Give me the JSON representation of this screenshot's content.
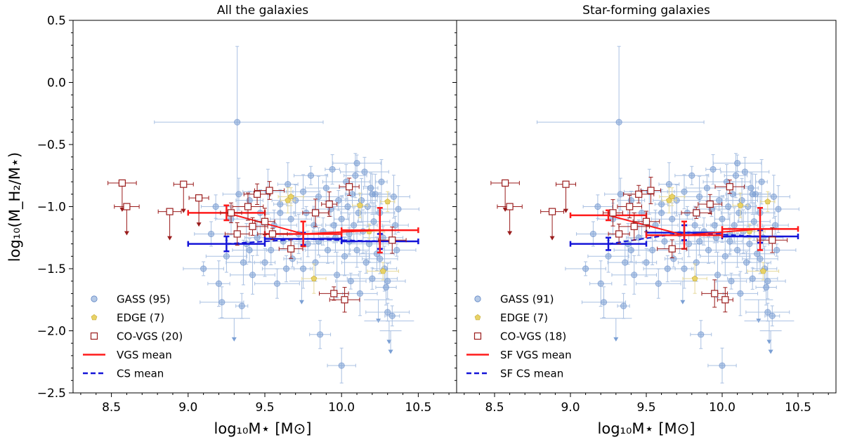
{
  "chart_data": {
    "type": "scatter",
    "ylabel": "log₁₀(M_H₂/M⋆)",
    "ylim": [
      -2.5,
      0.5
    ],
    "xlim": [
      8.25,
      10.75
    ],
    "yticks": [
      0.5,
      0.0,
      -0.5,
      -1.0,
      -1.5,
      -2.0,
      -2.5
    ],
    "ytick_labels": [
      "0.5",
      "0.0",
      "−0.5",
      "−1.0",
      "−1.5",
      "−2.0",
      "−2.5"
    ],
    "xticks": [
      8.5,
      9.0,
      9.5,
      10.0,
      10.5
    ],
    "xtick_labels": [
      "8.5",
      "9.0",
      "9.5",
      "10.0",
      "10.5"
    ],
    "colors": {
      "gass": "#7a9fd4",
      "gass_err": "#a9c0e2",
      "edge": "#e8d266",
      "edge_err": "#e6d99a",
      "covgs": "#9a1c1c",
      "vgs_mean": "#ff1a1a",
      "cs_mean": "#1414d8"
    },
    "panels": [
      {
        "title": "All the galaxies",
        "xlabel": "log₁₀M⋆ [M⊙]",
        "legend": [
          "GASS (95)",
          "EDGE (7)",
          "CO-VGS (20)",
          "VGS mean",
          "CS mean"
        ],
        "vgs_mean": {
          "x": [
            9.25,
            9.75,
            10.25
          ],
          "y": [
            -1.05,
            -1.22,
            -1.19
          ],
          "xerr": [
            0.25,
            0.25,
            0.25
          ],
          "yerr": [
            0.06,
            0.1,
            0.18
          ]
        },
        "cs_mean": {
          "x": [
            9.25,
            9.75,
            10.25
          ],
          "y": [
            -1.3,
            -1.26,
            -1.28
          ],
          "xerr": [
            0.25,
            0.25,
            0.25
          ],
          "yerr": [
            0.06,
            0.05,
            0.06
          ]
        },
        "covgs": [
          {
            "x": 8.57,
            "y": -0.81,
            "upper": true
          },
          {
            "x": 8.6,
            "y": -1.0,
            "upper": true
          },
          {
            "x": 8.88,
            "y": -1.04,
            "upper": true
          },
          {
            "x": 8.97,
            "y": -0.82,
            "upper": true
          },
          {
            "x": 9.07,
            "y": -0.93,
            "upper": true
          },
          {
            "x": 9.28,
            "y": -1.05,
            "upper": false
          },
          {
            "x": 9.32,
            "y": -1.22,
            "upper": false
          },
          {
            "x": 9.39,
            "y": -1.0,
            "upper": false
          },
          {
            "x": 9.42,
            "y": -1.16,
            "upper": false
          },
          {
            "x": 9.45,
            "y": -0.9,
            "upper": false
          },
          {
            "x": 9.5,
            "y": -1.12,
            "upper": false
          },
          {
            "x": 9.53,
            "y": -0.87,
            "upper": false
          },
          {
            "x": 9.55,
            "y": -1.22,
            "upper": false
          },
          {
            "x": 9.67,
            "y": -1.34,
            "upper": false
          },
          {
            "x": 9.83,
            "y": -1.05,
            "upper": false
          },
          {
            "x": 9.92,
            "y": -0.98,
            "upper": false
          },
          {
            "x": 9.95,
            "y": -1.7,
            "upper": false
          },
          {
            "x": 10.02,
            "y": -1.75,
            "upper": false
          },
          {
            "x": 10.05,
            "y": -0.84,
            "upper": false
          },
          {
            "x": 10.33,
            "y": -1.27,
            "upper": false
          }
        ],
        "edge": [
          {
            "x": 9.65,
            "y": -0.95
          },
          {
            "x": 9.67,
            "y": -0.92
          },
          {
            "x": 9.82,
            "y": -1.58
          },
          {
            "x": 10.12,
            "y": -0.99
          },
          {
            "x": 10.18,
            "y": -1.2
          },
          {
            "x": 10.27,
            "y": -1.52
          },
          {
            "x": 10.3,
            "y": -0.96
          }
        ]
      },
      {
        "title": "Star-forming galaxies",
        "xlabel": "log₁₀M⋆ [M⊙]",
        "legend": [
          "GASS (91)",
          "EDGE (7)",
          "CO-VGS (18)",
          "SF VGS mean",
          "SF CS mean"
        ],
        "vgs_mean": {
          "x": [
            9.25,
            9.75,
            10.25
          ],
          "y": [
            -1.07,
            -1.23,
            -1.18
          ],
          "xerr": [
            0.25,
            0.25,
            0.25
          ],
          "yerr": [
            0.04,
            0.11,
            0.17
          ]
        },
        "cs_mean": {
          "x": [
            9.25,
            9.75,
            10.25
          ],
          "y": [
            -1.3,
            -1.21,
            -1.24
          ],
          "xerr": [
            0.25,
            0.25,
            0.25
          ],
          "yerr": [
            0.05,
            0.06,
            0.05
          ]
        },
        "covgs": [
          {
            "x": 8.57,
            "y": -0.81,
            "upper": true
          },
          {
            "x": 8.6,
            "y": -1.0,
            "upper": true
          },
          {
            "x": 8.88,
            "y": -1.04,
            "upper": true
          },
          {
            "x": 8.97,
            "y": -0.82,
            "upper": true
          },
          {
            "x": 9.28,
            "y": -1.05,
            "upper": false
          },
          {
            "x": 9.32,
            "y": -1.22,
            "upper": false
          },
          {
            "x": 9.39,
            "y": -1.0,
            "upper": false
          },
          {
            "x": 9.42,
            "y": -1.16,
            "upper": false
          },
          {
            "x": 9.45,
            "y": -0.9,
            "upper": false
          },
          {
            "x": 9.5,
            "y": -1.12,
            "upper": false
          },
          {
            "x": 9.53,
            "y": -0.87,
            "upper": false
          },
          {
            "x": 9.67,
            "y": -1.34,
            "upper": false
          },
          {
            "x": 9.83,
            "y": -1.05,
            "upper": false
          },
          {
            "x": 9.92,
            "y": -0.98,
            "upper": false
          },
          {
            "x": 9.95,
            "y": -1.7,
            "upper": false
          },
          {
            "x": 10.02,
            "y": -1.75,
            "upper": false
          },
          {
            "x": 10.05,
            "y": -0.84,
            "upper": false
          },
          {
            "x": 10.33,
            "y": -1.27,
            "upper": false
          }
        ],
        "edge": [
          {
            "x": 9.65,
            "y": -0.95
          },
          {
            "x": 9.67,
            "y": -0.92
          },
          {
            "x": 9.82,
            "y": -1.58
          },
          {
            "x": 10.12,
            "y": -0.99
          },
          {
            "x": 10.18,
            "y": -1.2
          },
          {
            "x": 10.27,
            "y": -1.52
          },
          {
            "x": 10.3,
            "y": -0.96
          }
        ]
      }
    ],
    "gass": [
      {
        "x": 9.32,
        "y": -0.32,
        "upper": false
      },
      {
        "x": 9.1,
        "y": -1.5,
        "upper": false
      },
      {
        "x": 9.15,
        "y": -1.22,
        "upper": false
      },
      {
        "x": 9.18,
        "y": -1.0,
        "upper": false
      },
      {
        "x": 9.2,
        "y": -1.62,
        "upper": false
      },
      {
        "x": 9.22,
        "y": -1.77,
        "upper": false
      },
      {
        "x": 9.25,
        "y": -1.4,
        "upper": false
      },
      {
        "x": 9.28,
        "y": -1.1,
        "upper": false
      },
      {
        "x": 9.3,
        "y": -1.9,
        "upper": true
      },
      {
        "x": 9.33,
        "y": -0.9,
        "upper": false
      },
      {
        "x": 9.35,
        "y": -1.8,
        "upper": false
      },
      {
        "x": 9.36,
        "y": -1.45,
        "upper": false
      },
      {
        "x": 9.38,
        "y": -1.3,
        "upper": false
      },
      {
        "x": 9.4,
        "y": -0.95,
        "upper": false
      },
      {
        "x": 9.42,
        "y": -1.55,
        "upper": false
      },
      {
        "x": 9.45,
        "y": -1.25,
        "upper": false
      },
      {
        "x": 9.47,
        "y": -1.05,
        "upper": false
      },
      {
        "x": 9.5,
        "y": -1.45,
        "upper": false
      },
      {
        "x": 9.52,
        "y": -0.88,
        "upper": false
      },
      {
        "x": 9.54,
        "y": -1.35,
        "upper": false
      },
      {
        "x": 9.56,
        "y": -1.15,
        "upper": false
      },
      {
        "x": 9.58,
        "y": -1.62,
        "upper": false
      },
      {
        "x": 9.6,
        "y": -0.98,
        "upper": false
      },
      {
        "x": 9.62,
        "y": -1.28,
        "upper": false
      },
      {
        "x": 9.64,
        "y": -1.5,
        "upper": false
      },
      {
        "x": 9.65,
        "y": -0.82,
        "upper": false
      },
      {
        "x": 9.67,
        "y": -1.1,
        "upper": false
      },
      {
        "x": 9.68,
        "y": -1.42,
        "upper": false
      },
      {
        "x": 9.7,
        "y": -0.95,
        "upper": false
      },
      {
        "x": 9.72,
        "y": -1.22,
        "upper": false
      },
      {
        "x": 9.74,
        "y": -1.6,
        "upper": true
      },
      {
        "x": 9.75,
        "y": -0.88,
        "upper": false
      },
      {
        "x": 9.77,
        "y": -1.05,
        "upper": false
      },
      {
        "x": 9.78,
        "y": -1.3,
        "upper": false
      },
      {
        "x": 9.8,
        "y": -0.75,
        "upper": false
      },
      {
        "x": 9.82,
        "y": -1.15,
        "upper": false
      },
      {
        "x": 9.83,
        "y": -1.45,
        "upper": false
      },
      {
        "x": 9.85,
        "y": -0.92,
        "upper": false
      },
      {
        "x": 9.86,
        "y": -2.03,
        "upper": false
      },
      {
        "x": 9.88,
        "y": -1.2,
        "upper": false
      },
      {
        "x": 9.9,
        "y": -0.85,
        "upper": false
      },
      {
        "x": 9.91,
        "y": -1.35,
        "upper": false
      },
      {
        "x": 9.93,
        "y": -1.02,
        "upper": false
      },
      {
        "x": 9.94,
        "y": -0.7,
        "upper": false
      },
      {
        "x": 9.96,
        "y": -1.25,
        "upper": false
      },
      {
        "x": 9.97,
        "y": -1.55,
        "upper": false
      },
      {
        "x": 9.98,
        "y": -0.95,
        "upper": false
      },
      {
        "x": 10.0,
        "y": -1.1,
        "upper": false
      },
      {
        "x": 10.0,
        "y": -2.28,
        "upper": false
      },
      {
        "x": 10.02,
        "y": -1.4,
        "upper": false
      },
      {
        "x": 10.03,
        "y": -0.8,
        "upper": false
      },
      {
        "x": 10.04,
        "y": -1.0,
        "upper": false
      },
      {
        "x": 10.05,
        "y": -1.28,
        "upper": false
      },
      {
        "x": 10.06,
        "y": -1.6,
        "upper": false
      },
      {
        "x": 10.07,
        "y": -0.9,
        "upper": false
      },
      {
        "x": 10.08,
        "y": -1.15,
        "upper": false
      },
      {
        "x": 10.09,
        "y": -0.75,
        "upper": false
      },
      {
        "x": 10.1,
        "y": -1.35,
        "upper": false
      },
      {
        "x": 10.11,
        "y": -1.05,
        "upper": false
      },
      {
        "x": 10.12,
        "y": -1.7,
        "upper": false
      },
      {
        "x": 10.13,
        "y": -0.95,
        "upper": false
      },
      {
        "x": 10.14,
        "y": -1.2,
        "upper": false
      },
      {
        "x": 10.15,
        "y": -0.72,
        "upper": false
      },
      {
        "x": 10.16,
        "y": -1.45,
        "upper": false
      },
      {
        "x": 10.17,
        "y": -1.0,
        "upper": false
      },
      {
        "x": 10.18,
        "y": -1.3,
        "upper": false
      },
      {
        "x": 10.19,
        "y": -0.85,
        "upper": false
      },
      {
        "x": 10.2,
        "y": -1.58,
        "upper": false
      },
      {
        "x": 10.21,
        "y": -1.12,
        "upper": false
      },
      {
        "x": 10.22,
        "y": -0.9,
        "upper": false
      },
      {
        "x": 10.23,
        "y": -1.38,
        "upper": false
      },
      {
        "x": 10.24,
        "y": -1.75,
        "upper": true
      },
      {
        "x": 10.25,
        "y": -1.05,
        "upper": false
      },
      {
        "x": 10.26,
        "y": -0.8,
        "upper": false
      },
      {
        "x": 10.27,
        "y": -1.25,
        "upper": false
      },
      {
        "x": 10.28,
        "y": -1.5,
        "upper": false
      },
      {
        "x": 10.29,
        "y": -1.65,
        "upper": false
      },
      {
        "x": 10.3,
        "y": -1.85,
        "upper": false
      },
      {
        "x": 10.31,
        "y": -1.92,
        "upper": true
      },
      {
        "x": 10.32,
        "y": -2.0,
        "upper": true
      },
      {
        "x": 10.33,
        "y": -1.88,
        "upper": false
      },
      {
        "x": 10.34,
        "y": -0.92,
        "upper": false
      },
      {
        "x": 10.35,
        "y": -1.15,
        "upper": false
      },
      {
        "x": 10.36,
        "y": -1.35,
        "upper": false
      },
      {
        "x": 10.37,
        "y": -1.02,
        "upper": false
      },
      {
        "x": 10.2,
        "y": -0.9,
        "upper": false
      },
      {
        "x": 10.25,
        "y": -1.42,
        "upper": false
      },
      {
        "x": 9.95,
        "y": -1.15,
        "upper": false
      },
      {
        "x": 9.6,
        "y": -1.05,
        "upper": false
      },
      {
        "x": 9.4,
        "y": -1.35,
        "upper": false
      },
      {
        "x": 9.75,
        "y": -1.5,
        "upper": false
      },
      {
        "x": 10.05,
        "y": -1.22,
        "upper": false
      },
      {
        "x": 10.1,
        "y": -0.65,
        "upper": false
      },
      {
        "x": 10.3,
        "y": -1.6,
        "upper": false
      },
      {
        "x": 9.85,
        "y": -1.28,
        "upper": false
      }
    ]
  }
}
